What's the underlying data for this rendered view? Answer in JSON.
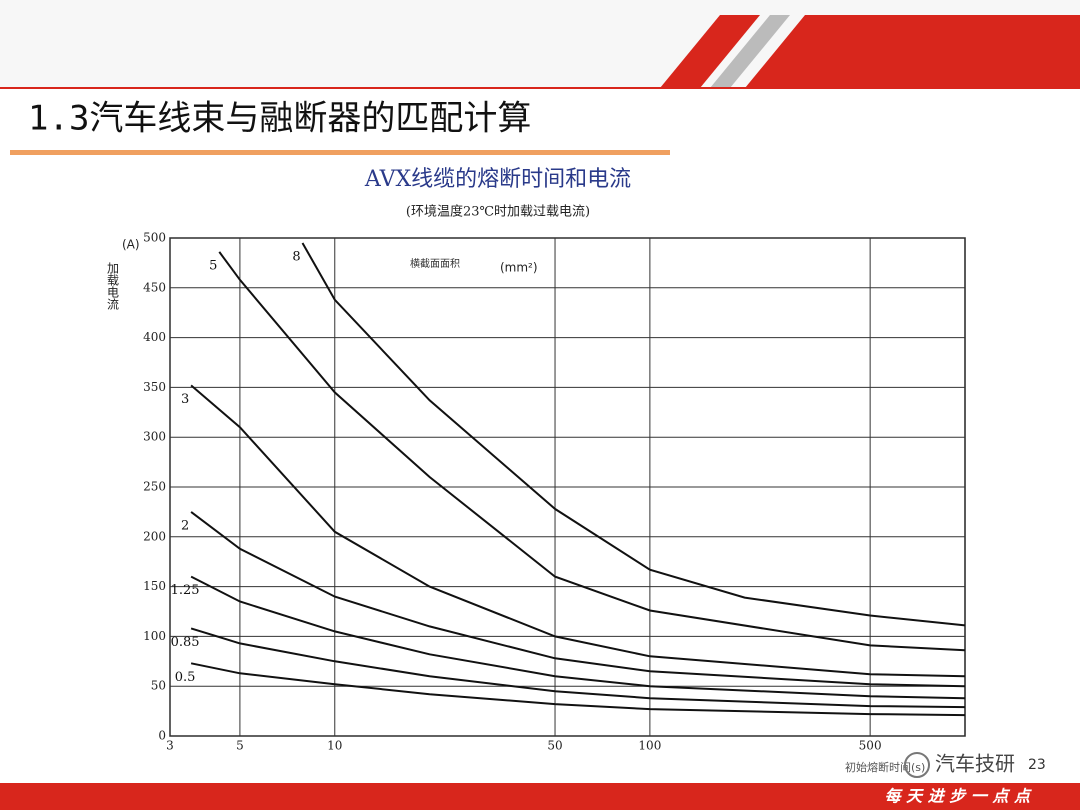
{
  "slide": {
    "title": "1.3汽车线束与融断器的匹配计算",
    "footer": "每 天 进 步 一 点 点",
    "watermark": "汽车技研",
    "page": "23"
  },
  "chart_data": {
    "type": "line",
    "title": "AVX线缆的熔断时间和电流",
    "subtitle": "(环境温度23℃时加载过载电流)",
    "y_unit": "(A)",
    "y_label": "加载电流",
    "x_label": "初始熔断时间(s)",
    "annotation": "横截面面积",
    "annotation_unit": "(mm²)",
    "log_x": true,
    "grid": true,
    "xlim": [
      3,
      1000
    ],
    "xticks": [
      3,
      5,
      10,
      50,
      100,
      500
    ],
    "ylim": [
      0,
      500
    ],
    "yticks": [
      0,
      50,
      100,
      150,
      200,
      250,
      300,
      350,
      400,
      450,
      500
    ],
    "series": [
      {
        "name": "0.5",
        "color": "#111111",
        "x": [
          3.5,
          5,
          10,
          20,
          50,
          100,
          500,
          1000
        ],
        "values": [
          73,
          63,
          52,
          42,
          32,
          27,
          22,
          21
        ]
      },
      {
        "name": "0.85",
        "color": "#111111",
        "x": [
          3.5,
          5,
          10,
          20,
          50,
          100,
          500,
          1000
        ],
        "values": [
          108,
          93,
          75,
          60,
          45,
          38,
          30,
          29
        ]
      },
      {
        "name": "1.25",
        "color": "#111111",
        "x": [
          3.5,
          5,
          10,
          20,
          50,
          100,
          500,
          1000
        ],
        "values": [
          160,
          135,
          105,
          82,
          60,
          50,
          40,
          38
        ]
      },
      {
        "name": "2",
        "color": "#111111",
        "x": [
          3.5,
          5,
          10,
          20,
          50,
          100,
          500,
          1000
        ],
        "values": [
          225,
          188,
          140,
          110,
          78,
          65,
          52,
          50
        ]
      },
      {
        "name": "3",
        "color": "#111111",
        "x": [
          3.5,
          5,
          10,
          20,
          50,
          100,
          500,
          1000
        ],
        "values": [
          352,
          310,
          205,
          150,
          100,
          80,
          62,
          60
        ]
      },
      {
        "name": "5",
        "color": "#111111",
        "x": [
          4.3,
          5,
          10,
          20,
          50,
          100,
          500,
          1000
        ],
        "values": [
          486,
          458,
          345,
          260,
          160,
          126,
          91,
          86
        ]
      },
      {
        "name": "8",
        "color": "#111111",
        "x": [
          7.9,
          10,
          20,
          50,
          100,
          200,
          500,
          1000
        ],
        "values": [
          495,
          438,
          337,
          228,
          167,
          139,
          121,
          111
        ]
      }
    ]
  }
}
